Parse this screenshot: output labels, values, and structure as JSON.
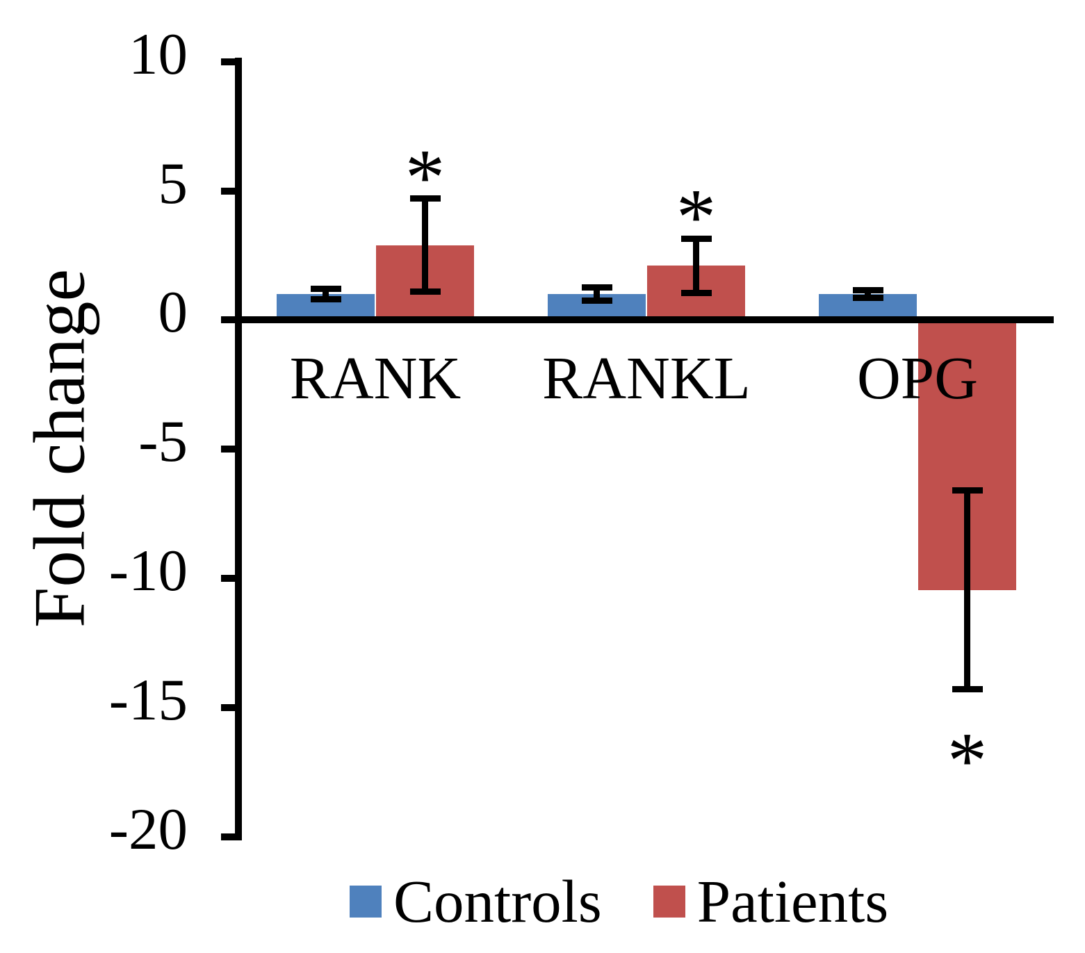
{
  "chart_data": {
    "type": "bar",
    "title": "",
    "xlabel": "",
    "ylabel": "Fold change",
    "ylim": [
      -20,
      10
    ],
    "yticks": [
      10,
      5,
      0,
      -5,
      -10,
      -15,
      -20
    ],
    "grid": false,
    "legend_position": "bottom",
    "significance_marker": "*",
    "axis_color": "#000000",
    "error_bar_color": "#000000",
    "categories": [
      "RANK",
      "RANKL",
      "OPG"
    ],
    "series": [
      {
        "name": "Controls",
        "color": "#4F81BD",
        "values": [
          1.0,
          1.0,
          1.0
        ],
        "errors": [
          0.2,
          0.25,
          0.15
        ],
        "significant": [
          false,
          false,
          false
        ]
      },
      {
        "name": "Patients",
        "color": "#C0504D",
        "values": [
          2.9,
          2.1,
          -10.45
        ],
        "errors": [
          1.8,
          1.05,
          3.85
        ],
        "significant": [
          true,
          true,
          true
        ]
      }
    ]
  }
}
